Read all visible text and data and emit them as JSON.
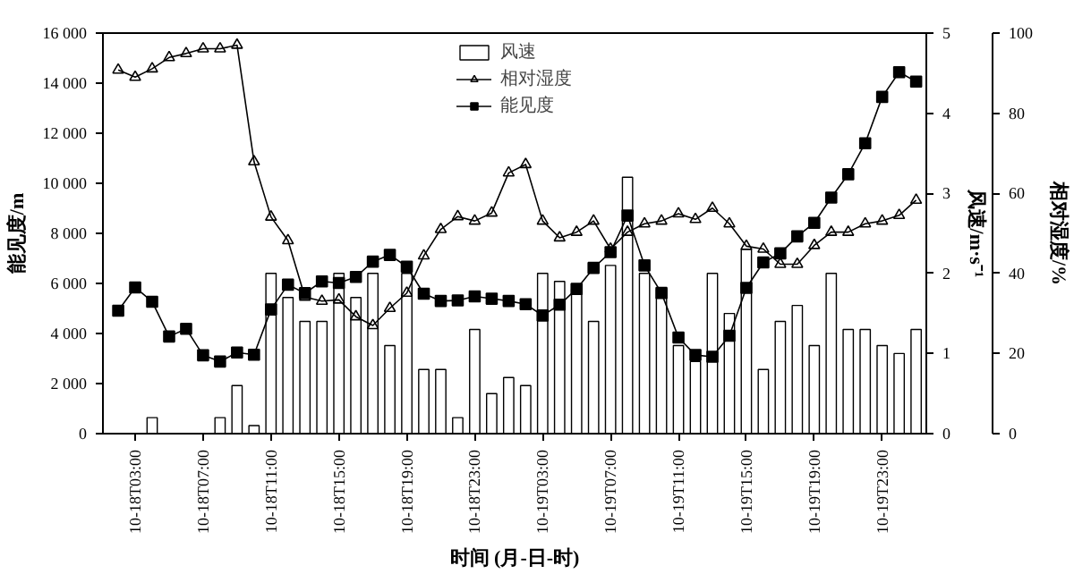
{
  "chart_data": {
    "type": "line",
    "xlabel": "时间 (月-日-时)",
    "ylabel": "能见度/m",
    "y2label": "风速/m·s⁻¹",
    "y3label": "相对湿度/%",
    "categories": [
      null,
      "10-18T03:00",
      null,
      null,
      null,
      "10-18T07:00",
      null,
      null,
      null,
      "10-18T11:00",
      null,
      null,
      null,
      "10-18T15:00",
      null,
      null,
      null,
      "10-18T19:00",
      null,
      null,
      null,
      "10-18T23:00",
      null,
      null,
      null,
      "10-19T03:00",
      null,
      null,
      null,
      "10-19T07:00",
      null,
      null,
      null,
      "10-19T11:00",
      null,
      null,
      null,
      "10-19T15:00",
      null,
      null,
      null,
      "10-19T19:00",
      null,
      null,
      null,
      "10-19T23:00",
      null,
      null
    ],
    "ylim": [
      0,
      16000
    ],
    "yticks": [
      0,
      {
        "value": 2000,
        "label": "2 000"
      },
      {
        "value": 4000,
        "label": "4 000"
      },
      {
        "value": 6000,
        "label": "6 000"
      },
      {
        "value": 8000,
        "label": "8 000"
      },
      {
        "value": 10000,
        "label": "10 000"
      },
      {
        "value": 12000,
        "label": "12 000"
      },
      {
        "value": 14000,
        "label": "14 000"
      },
      {
        "value": 16000,
        "label": "16 000"
      }
    ],
    "y2lim": [
      0,
      5
    ],
    "y2ticks": [
      0,
      1,
      2,
      3,
      4,
      5
    ],
    "y3lim": [
      0,
      100
    ],
    "y3ticks": [
      0,
      20,
      40,
      60,
      80,
      100
    ],
    "grid": false,
    "legend": "top",
    "series": [
      {
        "name": "风速",
        "type": "bar",
        "axis": "y2",
        "color": "#ffffff",
        "values": [
          null,
          null,
          0.2,
          null,
          null,
          null,
          0.2,
          0.6,
          0.1,
          2.0,
          1.7,
          1.4,
          1.4,
          2.0,
          1.7,
          2.0,
          1.1,
          2.0,
          0.8,
          0.8,
          0.2,
          1.3,
          0.5,
          0.7,
          0.6,
          2.0,
          1.9,
          1.8,
          1.4,
          2.1,
          3.2,
          2.0,
          1.8,
          1.1,
          0.9,
          2.0,
          1.5,
          2.3,
          0.8,
          1.4,
          1.6,
          1.1,
          2.0,
          1.3,
          1.3,
          1.1,
          1.0,
          1.3
        ]
      },
      {
        "name": "相对湿度",
        "type": "line",
        "axis": "y3",
        "color": "#000000",
        "marker": "triangle",
        "values": [
          90.8,
          89.0,
          91.1,
          93.9,
          94.9,
          96.1,
          96.1,
          97.0,
          67.9,
          54.1,
          48.2,
          34.1,
          33.1,
          33.4,
          29.2,
          27.0,
          31.3,
          35.1,
          44.4,
          51.0,
          54.2,
          53.1,
          55.1,
          65.1,
          67.2,
          53.1,
          48.9,
          50.3,
          53.1,
          46.1,
          50.3,
          52.4,
          53.1,
          54.9,
          53.5,
          56.3,
          52.4,
          46.8,
          46.1,
          42.3,
          42.3,
          47.0,
          50.3,
          50.3,
          52.4,
          53.1,
          54.5,
          58.3
        ]
      },
      {
        "name": "能见度",
        "color": "#000000",
        "marker": "square",
        "values": [
          4910,
          5840,
          5270,
          3880,
          4190,
          3130,
          2880,
          3240,
          3150,
          4960,
          5950,
          5610,
          6080,
          6020,
          6260,
          6870,
          7140,
          6670,
          5590,
          5300,
          5320,
          5480,
          5390,
          5300,
          5170,
          4720,
          5150,
          5780,
          6620,
          7250,
          8710,
          6720,
          5620,
          3840,
          3140,
          3070,
          3910,
          5820,
          6840,
          7200,
          7880,
          8420,
          9430,
          10360,
          11600,
          13450,
          14440,
          14060
        ]
      }
    ]
  }
}
